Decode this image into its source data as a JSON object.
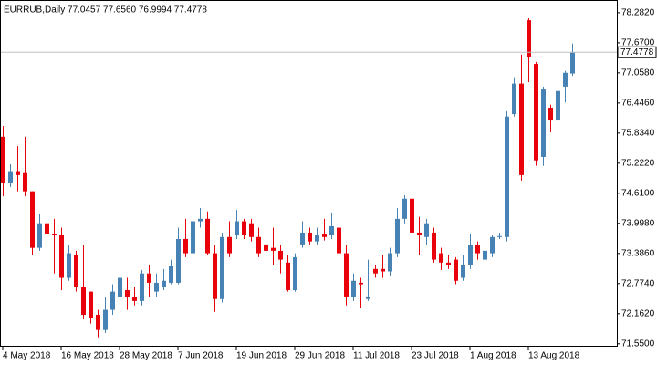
{
  "chart_data": {
    "type": "candlestick",
    "title": "EURRUB,Daily  77.0457 77.6560 76.9994 77.4778",
    "categories": [
      "4 May 2018",
      null,
      null,
      null,
      null,
      null,
      null,
      null,
      "16 May 2018",
      null,
      null,
      null,
      null,
      null,
      null,
      null,
      "28 May 2018",
      null,
      null,
      null,
      null,
      null,
      null,
      null,
      "7 Jun 2018",
      null,
      null,
      null,
      null,
      null,
      null,
      null,
      "19 Jun 2018",
      null,
      null,
      null,
      null,
      null,
      null,
      null,
      "29 Jun 2018",
      null,
      null,
      null,
      null,
      null,
      null,
      null,
      "11 Jul 2018",
      null,
      null,
      null,
      null,
      null,
      null,
      null,
      "23 Jul 2018",
      null,
      null,
      null,
      null,
      null,
      null,
      null,
      "1 Aug 2018",
      null,
      null,
      null,
      null,
      null,
      null,
      null,
      "13 Aug 2018",
      null,
      null,
      null,
      null,
      null,
      null
    ],
    "open": [
      75.76,
      74.83,
      75.06,
      75.02,
      74.65,
      73.5,
      74.0,
      73.79,
      73.76,
      72.89,
      73.35,
      72.7,
      72.61,
      72.14,
      71.83,
      72.24,
      72.51,
      72.64,
      72.51,
      72.42,
      72.98,
      72.61,
      72.7,
      72.79,
      72.79,
      73.68,
      73.39,
      74.04,
      74.09,
      73.39,
      72.46,
      73.72,
      73.76,
      74.04,
      74.0,
      73.72,
      73.57,
      73.5,
      73.44,
      73.2,
      72.64,
      73.57,
      73.81,
      73.63,
      73.79,
      73.76,
      73.91,
      73.39,
      72.51,
      72.79,
      72.46,
      73.07,
      73.07,
      73.02,
      73.39,
      74.09,
      74.5,
      73.81,
      73.72,
      73.81,
      73.39,
      73.2,
      73.26,
      72.89,
      73.16,
      73.55,
      73.26,
      73.39,
      73.72,
      73.72,
      76.22,
      76.84,
      78.13,
      77.24,
      75.35,
      76.35,
      76.09,
      76.78,
      77.0457
    ],
    "high": [
      75.98,
      75.2,
      75.57,
      75.76,
      74.65,
      74.18,
      74.27,
      74.09,
      73.91,
      73.55,
      73.44,
      73.55,
      72.61,
      72.24,
      72.51,
      72.76,
      72.98,
      72.89,
      72.7,
      73.05,
      73.16,
      72.98,
      73.07,
      73.26,
      73.91,
      74.09,
      74.18,
      74.31,
      74.24,
      73.55,
      73.81,
      74.04,
      74.27,
      74.09,
      74.09,
      73.91,
      73.76,
      73.91,
      73.55,
      73.35,
      73.39,
      74.04,
      73.91,
      73.91,
      74.09,
      74.22,
      74.09,
      73.55,
      72.98,
      72.89,
      73.26,
      73.16,
      73.35,
      73.5,
      74.31,
      74.57,
      74.57,
      74.13,
      74.09,
      73.91,
      73.5,
      73.35,
      73.31,
      73.35,
      73.79,
      73.63,
      73.55,
      73.76,
      73.81,
      76.28,
      76.97,
      77.43,
      78.17,
      77.28,
      76.78,
      76.41,
      76.72,
      77.1,
      77.656
    ],
    "low": [
      74.55,
      74.74,
      74.65,
      74.55,
      73.35,
      73.44,
      73.68,
      72.98,
      72.64,
      72.83,
      72.61,
      72.05,
      71.96,
      71.68,
      71.77,
      72.14,
      72.39,
      72.24,
      72.33,
      72.33,
      72.51,
      72.51,
      72.64,
      72.76,
      72.76,
      73.31,
      73.31,
      73.91,
      73.35,
      72.2,
      72.39,
      73.31,
      73.68,
      73.68,
      73.63,
      73.31,
      73.31,
      73.16,
      72.98,
      72.61,
      72.61,
      73.5,
      73.57,
      73.57,
      73.65,
      73.68,
      73.35,
      72.33,
      72.42,
      72.27,
      72.42,
      72.89,
      72.89,
      72.94,
      73.31,
      74.0,
      73.68,
      73.35,
      73.55,
      73.2,
      73.05,
      73.07,
      72.76,
      72.83,
      73.07,
      73.26,
      73.2,
      73.31,
      73.68,
      73.63,
      76.17,
      74.87,
      76.87,
      75.17,
      75.17,
      75.85,
      75.98,
      76.46,
      76.9994
    ],
    "close": [
      74.83,
      75.06,
      74.98,
      74.65,
      73.5,
      74.0,
      73.79,
      73.76,
      72.89,
      73.39,
      72.7,
      72.14,
      72.08,
      71.83,
      72.24,
      72.61,
      72.89,
      72.51,
      72.42,
      72.98,
      72.79,
      72.79,
      72.83,
      73.13,
      73.68,
      73.39,
      74.04,
      74.09,
      73.39,
      72.46,
      73.72,
      73.39,
      74.04,
      73.76,
      73.72,
      73.39,
      73.44,
      73.44,
      73.26,
      72.64,
      73.31,
      73.81,
      73.63,
      73.76,
      73.72,
      73.94,
      73.39,
      72.51,
      72.83,
      72.76,
      72.5,
      72.98,
      73.02,
      73.39,
      74.09,
      74.5,
      73.81,
      73.76,
      74.0,
      73.26,
      73.2,
      73.16,
      72.83,
      73.16,
      73.55,
      73.39,
      73.44,
      73.72,
      73.74,
      76.17,
      76.84,
      74.98,
      77.39,
      75.28,
      76.72,
      76.09,
      76.69,
      77.06,
      77.4778
    ],
    "up_color": "#4682b4",
    "down_color": "#e8000b",
    "ylim": [
      71.49,
      78.54
    ],
    "yticks": [
      {
        "value": 78.282,
        "label": "78.2820"
      },
      {
        "value": 77.67,
        "label": "77.6700"
      },
      {
        "value": 77.058,
        "label": "77.0580"
      },
      {
        "value": 76.446,
        "label": "76.4460"
      },
      {
        "value": 75.834,
        "label": "75.8340"
      },
      {
        "value": 75.222,
        "label": "75.2220"
      },
      {
        "value": 74.61,
        "label": "74.6100"
      },
      {
        "value": 73.998,
        "label": "73.9980"
      },
      {
        "value": 73.386,
        "label": "73.3860"
      },
      {
        "value": 72.774,
        "label": "72.7740"
      },
      {
        "value": 72.162,
        "label": "72.1620"
      },
      {
        "value": 71.55,
        "label": "71.5500"
      }
    ],
    "price_line": {
      "value": 77.4778,
      "label": "77.4778",
      "color": "#c0c0c0"
    }
  }
}
